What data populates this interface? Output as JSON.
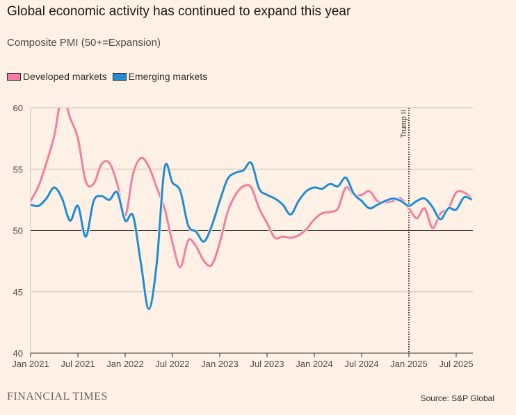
{
  "chart_data": {
    "type": "line",
    "title": "Global economic activity has continued to expand this year",
    "subtitle": "Composite PMI (50+=Expansion)",
    "ylim": [
      40,
      60
    ],
    "yticks": [
      40,
      45,
      50,
      55,
      60
    ],
    "xtick_labels": [
      "Jan 2021",
      "Jul 2021",
      "Jan 2022",
      "Jul 2022",
      "Jan 2023",
      "Jul 2023",
      "Jan 2024",
      "Jul 2024",
      "Jan 2025",
      "Jul 2025"
    ],
    "x_start": "Jan 2021",
    "x_end": "Sep 2025",
    "grid": true,
    "legend_position": "top-left",
    "reference_line": 50,
    "annotation": {
      "label": "Trump II",
      "x": "Jan 2025"
    },
    "series": [
      {
        "name": "Developed markets",
        "color": "#f27ea1",
        "values": [
          52.4,
          53.6,
          55.5,
          57.7,
          61.0,
          59.2,
          57.5,
          54.0,
          53.8,
          55.4,
          55.5,
          53.8,
          51.2,
          54.6,
          55.9,
          55.2,
          53.5,
          51.8,
          49.0,
          47.0,
          49.2,
          48.7,
          47.5,
          47.2,
          49.0,
          51.5,
          52.9,
          53.6,
          53.5,
          51.8,
          50.6,
          49.4,
          49.5,
          49.4,
          49.6,
          50.1,
          50.9,
          51.4,
          51.5,
          51.8,
          53.5,
          52.9,
          52.9,
          53.2,
          52.4,
          52.3,
          52.4,
          52.6,
          51.8,
          51.0,
          51.8,
          50.2,
          51.4,
          51.8,
          53.1,
          53.1,
          52.6
        ]
      },
      {
        "name": "Emerging markets",
        "color": "#1f8dd6",
        "values": [
          52.1,
          52.0,
          52.6,
          53.5,
          52.6,
          50.8,
          52.0,
          49.5,
          52.4,
          52.8,
          52.5,
          53.1,
          50.8,
          51.2,
          47.3,
          43.6,
          47.3,
          55.1,
          53.9,
          53.2,
          50.4,
          49.9,
          49.1,
          50.4,
          52.4,
          54.2,
          54.7,
          54.9,
          55.5,
          53.4,
          52.9,
          52.6,
          52.1,
          51.3,
          52.4,
          53.2,
          53.5,
          53.4,
          53.8,
          53.6,
          54.3,
          53.0,
          52.4,
          51.8,
          52.1,
          52.4,
          52.6,
          52.4,
          52.0,
          52.4,
          52.6,
          51.9,
          50.9,
          51.8,
          51.7,
          52.7,
          52.5
        ]
      }
    ]
  },
  "footer": {
    "logo": "FINANCIAL TIMES",
    "source": "Source: S&P Global"
  }
}
